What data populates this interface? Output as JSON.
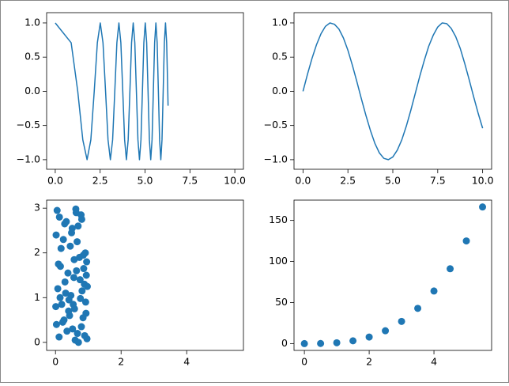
{
  "chart_data": [
    {
      "type": "line",
      "color": "#1f77b4",
      "x": [
        0,
        0.886,
        1.253,
        1.535,
        1.772,
        1.982,
        2.171,
        2.345,
        2.507,
        2.659,
        2.802,
        2.939,
        3.07,
        3.195,
        3.316,
        3.432,
        3.545,
        3.654,
        3.76,
        3.863,
        3.963,
        4.061,
        4.157,
        4.25,
        4.342,
        4.431,
        4.519,
        4.605,
        4.69,
        4.773,
        4.854,
        4.934,
        5.013,
        5.091,
        5.168,
        5.243,
        5.317,
        5.391,
        5.463,
        5.535,
        5.605,
        5.675,
        5.743,
        5.811,
        5.879,
        5.945,
        6.011,
        6.076,
        6.14,
        6.204,
        6.267,
        6.283
      ],
      "values": [
        1,
        0.71,
        0,
        -0.71,
        -1,
        -0.71,
        0,
        0.71,
        1,
        0.71,
        0,
        -0.71,
        -1,
        -0.71,
        0,
        0.71,
        1,
        0.71,
        0,
        -0.71,
        -1,
        -0.71,
        0,
        0.71,
        1,
        0.71,
        0,
        -0.71,
        -1,
        -0.71,
        0,
        0.71,
        1,
        0.71,
        0,
        -0.71,
        -1,
        -0.71,
        0,
        0.71,
        1,
        0.71,
        0,
        -0.71,
        -1,
        -0.71,
        0,
        0.71,
        1,
        0.71,
        0,
        -0.21
      ],
      "xlim": [
        -0.48,
        10.48
      ],
      "xticks": [
        {
          "value": 0,
          "label": "0.0"
        },
        2.5,
        {
          "value": 5,
          "label": "5.0"
        },
        7.5,
        {
          "value": 10,
          "label": "10.0"
        }
      ],
      "ylim": [
        -1.14,
        1.15
      ],
      "yticks": [
        {
          "value": -1,
          "label": "−1.0"
        },
        {
          "value": -0.5,
          "label": "−0.5"
        },
        {
          "value": 0,
          "label": "0.0"
        },
        0.5,
        {
          "value": 1,
          "label": "1.0"
        }
      ]
    },
    {
      "type": "line",
      "color": "#1f77b4",
      "x": [
        0,
        0.25,
        0.5,
        0.75,
        1,
        1.25,
        1.5,
        1.75,
        2,
        2.25,
        2.5,
        2.75,
        3,
        3.25,
        3.5,
        3.75,
        4,
        4.25,
        4.5,
        4.75,
        5,
        5.25,
        5.5,
        5.75,
        6,
        6.25,
        6.5,
        6.75,
        7,
        7.25,
        7.5,
        7.75,
        8,
        8.25,
        8.5,
        8.75,
        9,
        9.25,
        9.5,
        9.75,
        10
      ],
      "values": [
        0,
        0.25,
        0.48,
        0.68,
        0.84,
        0.95,
        1.0,
        0.98,
        0.91,
        0.78,
        0.6,
        0.38,
        0.14,
        -0.11,
        -0.35,
        -0.57,
        -0.76,
        -0.9,
        -0.98,
        -1.0,
        -0.96,
        -0.86,
        -0.71,
        -0.51,
        -0.28,
        -0.03,
        0.22,
        0.45,
        0.66,
        0.82,
        0.94,
        1.0,
        0.99,
        0.92,
        0.8,
        0.63,
        0.41,
        0.17,
        -0.08,
        -0.32,
        -0.54
      ],
      "xlim": [
        -0.5,
        10.5
      ],
      "xticks": [
        {
          "value": 0,
          "label": "0.0"
        },
        2.5,
        {
          "value": 5,
          "label": "5.0"
        },
        7.5,
        {
          "value": 10,
          "label": "10.0"
        }
      ],
      "ylim": [
        -1.14,
        1.15
      ],
      "yticks": [
        {
          "value": -1,
          "label": "−1.0"
        },
        {
          "value": -0.5,
          "label": "−0.5"
        },
        {
          "value": 0,
          "label": "0.0"
        },
        0.5,
        {
          "value": 1,
          "label": "1.0"
        }
      ]
    },
    {
      "type": "scatter",
      "color": "#1f77b4",
      "x": [
        0.05,
        0.12,
        0.33,
        0.51,
        0.62,
        0.78,
        0.91,
        0.02,
        0.24,
        0.45,
        0.69,
        0.85,
        0.95,
        0.15,
        0.38,
        0.56,
        0.73,
        0.88,
        0.07,
        0.29,
        0.47,
        0.64,
        0.81,
        0.97,
        0.19,
        0.41,
        0.58,
        0.76,
        0.93,
        0.03,
        0.26,
        0.52,
        0.67,
        0.84,
        0.11,
        0.35,
        0.6,
        0.79,
        0.96,
        0.22,
        0.43,
        0.7,
        0.89,
        0.09,
        0.31,
        0.54,
        0.75,
        0.92,
        0.17,
        0.49,
        0.66,
        0.86,
        0.01,
        0.28,
        0.57,
        0.8,
        0.94,
        0.14,
        0.4,
        0.63
      ],
      "values": [
        2.95,
        2.8,
        2.7,
        2.55,
        2.98,
        2.85,
        2.0,
        2.4,
        2.3,
        2.15,
        2.6,
        1.95,
        1.8,
        1.7,
        1.55,
        1.45,
        1.9,
        1.3,
        1.2,
        1.35,
        1.05,
        1.6,
        1.15,
        1.25,
        0.85,
        0.95,
        0.75,
        0.98,
        0.65,
        0.4,
        0.5,
        0.3,
        0.2,
        0.55,
        0.12,
        0.25,
        0.05,
        0.35,
        0.08,
        0.45,
        0.6,
        0.0,
        0.15,
        1.75,
        1.1,
        0.85,
        1.4,
        0.9,
        2.1,
        2.45,
        2.25,
        1.65,
        0.8,
        2.65,
        1.85,
        2.75,
        1.5,
        1.0,
        0.7,
        2.9
      ],
      "xlim": [
        -0.27,
        5.73
      ],
      "xticks": [
        0,
        2,
        4
      ],
      "ylim": [
        -0.18,
        3.18
      ],
      "yticks": [
        0,
        1,
        2,
        3
      ]
    },
    {
      "type": "scatter",
      "color": "#1f77b4",
      "x": [
        0,
        0.5,
        1,
        1.5,
        2,
        2.5,
        3,
        3.5,
        4,
        4.5,
        5,
        5.5
      ],
      "values": [
        0,
        0.125,
        1,
        3.375,
        8,
        15.625,
        27,
        42.875,
        64,
        91.125,
        125,
        166.375
      ],
      "xlim": [
        -0.32,
        5.78
      ],
      "xticks": [
        0,
        2,
        4
      ],
      "ylim": [
        -8.3,
        174.7
      ],
      "yticks": [
        0,
        50,
        100,
        150
      ]
    }
  ]
}
